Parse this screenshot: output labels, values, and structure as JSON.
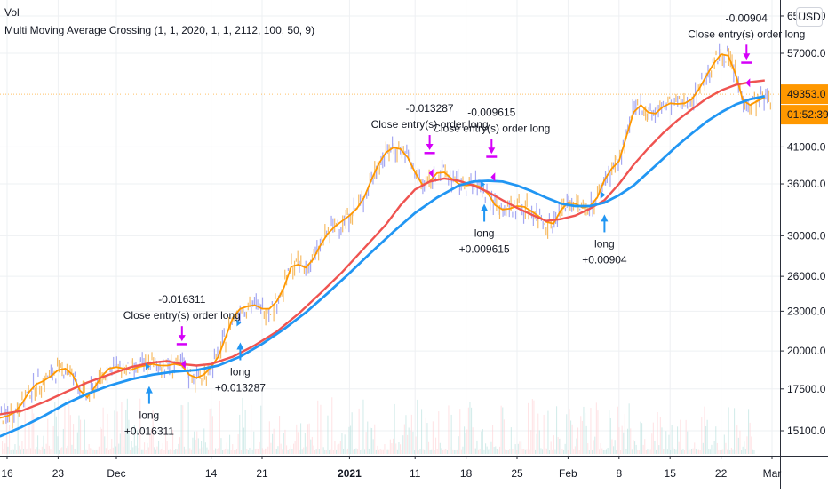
{
  "legend": {
    "vol_label": "Vol",
    "strategy_label": "Multi Moving Average Crossing (1, 1, 2020, 1, 1, 2112, 100, 50, 9)"
  },
  "currency_button": "USD",
  "price_axis": {
    "last_price": "49353.0",
    "countdown": "01:52:39",
    "last_price_color": "#ff9800"
  },
  "colors": {
    "ma_fast": "#ff9800",
    "ma_mid": "#ef5350",
    "ma_slow": "#2196f3",
    "candle": "#9598f0",
    "candle_down": "#f5b04a",
    "entry_arrow": "#2196f3",
    "exit_arrow": "#d500f9",
    "vol_up": "#b2dfdb",
    "vol_down": "#ffcdd2",
    "grid": "#eef0f3"
  },
  "chart_data": {
    "type": "line",
    "title": "Multi Moving Average Crossing (1, 1, 2020, 1, 1, 2112, 100, 50, 9)",
    "xlabel": "",
    "ylabel": "",
    "y_scale": "log",
    "ylim": [
      13800,
      66000
    ],
    "y_ticks": [
      "65000.0",
      "57000.0",
      "41000.0",
      "36000.0",
      "30000.0",
      "26000.0",
      "23000.0",
      "20000.0",
      "17500.0",
      "15100.0"
    ],
    "y_tick_values": [
      65000,
      57000,
      41000,
      36000,
      30000,
      26000,
      23000,
      20000,
      17500,
      15100
    ],
    "x_range_days": [
      -1,
      105
    ],
    "x_ticks": [
      {
        "label": "16",
        "day": 0
      },
      {
        "label": "23",
        "day": 7
      },
      {
        "label": "Dec",
        "day": 15
      },
      {
        "label": "14",
        "day": 28
      },
      {
        "label": "21",
        "day": 35
      },
      {
        "label": "2021",
        "day": 47
      },
      {
        "label": "11",
        "day": 56
      },
      {
        "label": "18",
        "day": 63
      },
      {
        "label": "25",
        "day": 70
      },
      {
        "label": "Feb",
        "day": 77
      },
      {
        "label": "8",
        "day": 84
      },
      {
        "label": "15",
        "day": 91
      },
      {
        "label": "22",
        "day": 98
      },
      {
        "label": "Mar",
        "day": 105
      }
    ],
    "x_bold_ticks": [
      "2021"
    ],
    "series": [
      {
        "name": "MA 9",
        "color": "#ff9800",
        "points": [
          [
            -1,
            15800
          ],
          [
            0,
            15900
          ],
          [
            1,
            16100
          ],
          [
            2,
            16600
          ],
          [
            3,
            17300
          ],
          [
            4,
            17800
          ],
          [
            5,
            18000
          ],
          [
            6,
            18300
          ],
          [
            7,
            18700
          ],
          [
            8,
            18800
          ],
          [
            9,
            18400
          ],
          [
            10,
            17400
          ],
          [
            11,
            17000
          ],
          [
            12,
            17600
          ],
          [
            13,
            18300
          ],
          [
            14,
            18800
          ],
          [
            15,
            18900
          ],
          [
            16,
            18800
          ],
          [
            17,
            18700
          ],
          [
            18,
            18900
          ],
          [
            19,
            19000
          ],
          [
            20,
            19100
          ],
          [
            21,
            19000
          ],
          [
            22,
            19000
          ],
          [
            23,
            19100
          ],
          [
            24,
            19000
          ],
          [
            25,
            18400
          ],
          [
            26,
            18200
          ],
          [
            27,
            18400
          ],
          [
            28,
            18900
          ],
          [
            29,
            19600
          ],
          [
            30,
            21000
          ],
          [
            31,
            22500
          ],
          [
            32,
            23200
          ],
          [
            33,
            23400
          ],
          [
            34,
            23500
          ],
          [
            35,
            23200
          ],
          [
            36,
            23200
          ],
          [
            37,
            23800
          ],
          [
            38,
            25000
          ],
          [
            39,
            26900
          ],
          [
            40,
            27100
          ],
          [
            41,
            26800
          ],
          [
            42,
            27600
          ],
          [
            43,
            29000
          ],
          [
            44,
            30200
          ],
          [
            45,
            31000
          ],
          [
            46,
            31600
          ],
          [
            47,
            32200
          ],
          [
            48,
            33000
          ],
          [
            49,
            34300
          ],
          [
            50,
            36500
          ],
          [
            51,
            38600
          ],
          [
            52,
            40200
          ],
          [
            53,
            40900
          ],
          [
            54,
            40700
          ],
          [
            55,
            39500
          ],
          [
            56,
            37500
          ],
          [
            57,
            35900
          ],
          [
            58,
            36300
          ],
          [
            59,
            37400
          ],
          [
            60,
            37500
          ],
          [
            61,
            36700
          ],
          [
            62,
            36000
          ],
          [
            63,
            35800
          ],
          [
            64,
            35900
          ],
          [
            65,
            35600
          ],
          [
            66,
            34800
          ],
          [
            67,
            33400
          ],
          [
            68,
            32900
          ],
          [
            69,
            33000
          ],
          [
            70,
            33300
          ],
          [
            71,
            33200
          ],
          [
            72,
            32700
          ],
          [
            73,
            32100
          ],
          [
            74,
            31500
          ],
          [
            75,
            31300
          ],
          [
            76,
            32800
          ],
          [
            77,
            33700
          ],
          [
            78,
            33600
          ],
          [
            79,
            33100
          ],
          [
            80,
            33300
          ],
          [
            81,
            34300
          ],
          [
            82,
            36500
          ],
          [
            83,
            38000
          ],
          [
            84,
            39000
          ],
          [
            85,
            42500
          ],
          [
            86,
            46300
          ],
          [
            87,
            47500
          ],
          [
            88,
            46300
          ],
          [
            89,
            46100
          ],
          [
            90,
            47200
          ],
          [
            91,
            47800
          ],
          [
            92,
            47700
          ],
          [
            93,
            47800
          ],
          [
            94,
            48500
          ],
          [
            95,
            50300
          ],
          [
            96,
            52700
          ],
          [
            97,
            55000
          ],
          [
            98,
            56800
          ],
          [
            99,
            56500
          ],
          [
            100,
            53000
          ],
          [
            101,
            48300
          ],
          [
            102,
            47500
          ],
          [
            103,
            48200
          ],
          [
            104,
            48800
          ]
        ]
      },
      {
        "name": "MA 50",
        "color": "#ef5350",
        "points": [
          [
            -1,
            16000
          ],
          [
            2,
            16200
          ],
          [
            5,
            16700
          ],
          [
            8,
            17300
          ],
          [
            11,
            17900
          ],
          [
            14,
            18400
          ],
          [
            17,
            18900
          ],
          [
            20,
            19200
          ],
          [
            22,
            19300
          ],
          [
            24,
            19100
          ],
          [
            26,
            19000
          ],
          [
            28,
            19100
          ],
          [
            31,
            19600
          ],
          [
            34,
            20400
          ],
          [
            37,
            21400
          ],
          [
            40,
            22800
          ],
          [
            43,
            24500
          ],
          [
            46,
            26400
          ],
          [
            49,
            28700
          ],
          [
            52,
            31200
          ],
          [
            54,
            33400
          ],
          [
            56,
            35300
          ],
          [
            58,
            36300
          ],
          [
            60,
            36700
          ],
          [
            62,
            36400
          ],
          [
            64,
            35800
          ],
          [
            66,
            35000
          ],
          [
            68,
            34000
          ],
          [
            70,
            33100
          ],
          [
            72,
            32300
          ],
          [
            74,
            31600
          ],
          [
            76,
            31800
          ],
          [
            78,
            32200
          ],
          [
            80,
            33000
          ],
          [
            82,
            34000
          ],
          [
            84,
            36000
          ],
          [
            86,
            38500
          ],
          [
            88,
            40800
          ],
          [
            90,
            43000
          ],
          [
            92,
            45000
          ],
          [
            94,
            46800
          ],
          [
            96,
            48600
          ],
          [
            98,
            50000
          ],
          [
            100,
            51000
          ],
          [
            102,
            51500
          ],
          [
            104,
            51800
          ]
        ]
      },
      {
        "name": "MA 100",
        "color": "#2196f3",
        "points": [
          [
            -1,
            14800
          ],
          [
            2,
            15300
          ],
          [
            5,
            15900
          ],
          [
            8,
            16600
          ],
          [
            11,
            17200
          ],
          [
            14,
            17700
          ],
          [
            17,
            18100
          ],
          [
            20,
            18400
          ],
          [
            23,
            18600
          ],
          [
            26,
            18700
          ],
          [
            29,
            19000
          ],
          [
            32,
            19600
          ],
          [
            35,
            20500
          ],
          [
            38,
            21600
          ],
          [
            41,
            22900
          ],
          [
            44,
            24500
          ],
          [
            47,
            26300
          ],
          [
            50,
            28300
          ],
          [
            53,
            30400
          ],
          [
            56,
            32500
          ],
          [
            59,
            34300
          ],
          [
            62,
            35800
          ],
          [
            64,
            36300
          ],
          [
            66,
            36400
          ],
          [
            68,
            36300
          ],
          [
            70,
            35800
          ],
          [
            72,
            35100
          ],
          [
            74,
            34300
          ],
          [
            76,
            33600
          ],
          [
            78,
            33300
          ],
          [
            80,
            33300
          ],
          [
            82,
            33700
          ],
          [
            84,
            34600
          ],
          [
            86,
            35800
          ],
          [
            88,
            37500
          ],
          [
            90,
            39300
          ],
          [
            92,
            41200
          ],
          [
            94,
            43000
          ],
          [
            96,
            44800
          ],
          [
            98,
            46300
          ],
          [
            100,
            47600
          ],
          [
            102,
            48500
          ],
          [
            104,
            49000
          ]
        ]
      }
    ],
    "trades": [
      {
        "type": "entry",
        "label": "long",
        "profit": "+0.016311",
        "day": 19.5,
        "price": 18700
      },
      {
        "type": "exit",
        "label": "Close entry(s) order long",
        "profit": "-0.016311",
        "day": 24,
        "price": 19500
      },
      {
        "type": "entry",
        "label": "long",
        "profit": "+0.013287",
        "day": 32,
        "price": 21800
      },
      {
        "type": "exit",
        "label": "Close entry(s) order long",
        "profit": "-0.013287",
        "day": 58,
        "price": 38200
      },
      {
        "type": "entry",
        "label": "long",
        "profit": "+0.009615",
        "day": 65.5,
        "price": 35500
      },
      {
        "type": "exit",
        "label": "Close entry(s) order long",
        "profit": "-0.009615",
        "day": 66.5,
        "price": 37700
      },
      {
        "type": "entry",
        "label": "long",
        "profit": "+0.00904",
        "day": 82,
        "price": 34200
      },
      {
        "type": "exit",
        "label": "Close entry(s) order long",
        "profit": "-0.00904",
        "day": 101.5,
        "price": 52500
      }
    ],
    "last_price": 49353.0,
    "legend": [
      "Vol",
      "Multi Moving Average Crossing (1, 1, 2020, 1, 1, 2112, 100, 50, 9)"
    ],
    "grid": true
  }
}
